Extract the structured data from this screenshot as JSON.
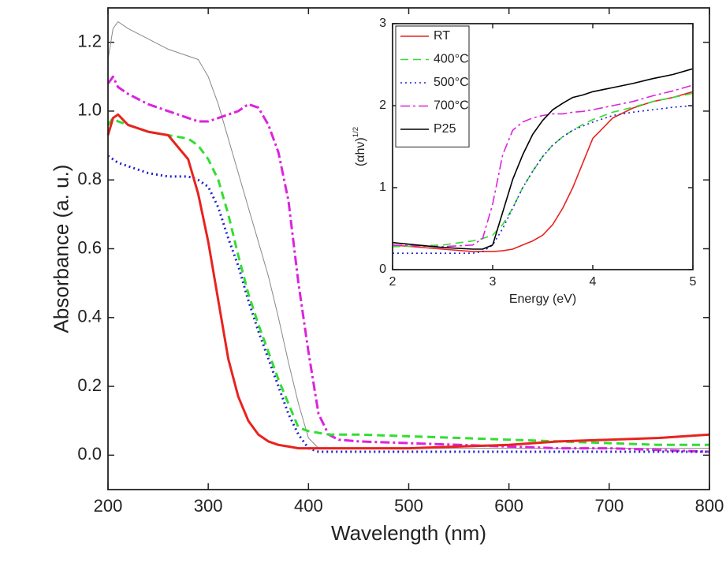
{
  "chart_data": [
    {
      "type": "line",
      "xlabel": "Wavelength (nm)",
      "ylabel": "Absorbance (a. u.)",
      "xlim": [
        200,
        800
      ],
      "xticks": [
        200,
        300,
        400,
        500,
        600,
        700,
        800
      ],
      "ylim": [
        -0.1,
        1.3
      ],
      "yticks": [
        {
          "value": 0,
          "label": "0.0"
        },
        0.2,
        0.4,
        0.6,
        0.8,
        {
          "value": 1,
          "label": "1.0"
        },
        1.2
      ],
      "x": [
        200,
        205,
        210,
        220,
        240,
        260,
        280,
        290,
        300,
        310,
        320,
        330,
        340,
        350,
        360,
        370,
        380,
        390,
        400,
        410,
        420,
        430,
        450,
        500,
        550,
        600,
        650,
        700,
        750,
        800
      ],
      "series": [
        {
          "color": "#888888",
          "style": "hairline",
          "values": [
            1.15,
            1.24,
            1.26,
            1.24,
            1.21,
            1.18,
            1.16,
            1.15,
            1.1,
            1.02,
            0.92,
            0.82,
            0.72,
            0.62,
            0.52,
            0.4,
            0.27,
            0.15,
            0.05,
            0.02,
            0.02,
            0.02,
            0.02,
            0.02,
            0.02,
            0.02,
            0.02,
            0.02,
            0.02,
            0.02
          ]
        },
        {
          "color": "#dd22dd",
          "style": "dashdot",
          "values": [
            1.08,
            1.1,
            1.07,
            1.05,
            1.02,
            1.0,
            0.98,
            0.97,
            0.97,
            0.98,
            0.99,
            1.0,
            1.02,
            1.01,
            0.96,
            0.88,
            0.74,
            0.5,
            0.3,
            0.12,
            0.06,
            0.045,
            0.04,
            0.035,
            0.03,
            0.025,
            0.02,
            0.02,
            0.015,
            0.01
          ]
        },
        {
          "color": "#2222cc",
          "style": "dotted",
          "values": [
            0.87,
            0.86,
            0.85,
            0.84,
            0.82,
            0.81,
            0.81,
            0.8,
            0.78,
            0.72,
            0.63,
            0.55,
            0.45,
            0.36,
            0.28,
            0.2,
            0.12,
            0.06,
            0.02,
            0.01,
            0.01,
            0.01,
            0.01,
            0.01,
            0.01,
            0.01,
            0.01,
            0.01,
            0.01,
            0.01
          ]
        },
        {
          "color": "#33dd33",
          "style": "dashed",
          "values": [
            0.96,
            0.98,
            0.97,
            0.96,
            0.94,
            0.93,
            0.92,
            0.9,
            0.86,
            0.8,
            0.7,
            0.58,
            0.47,
            0.38,
            0.3,
            0.22,
            0.15,
            0.08,
            0.07,
            0.065,
            0.06,
            0.06,
            0.06,
            0.055,
            0.05,
            0.045,
            0.04,
            0.035,
            0.03,
            0.03
          ]
        },
        {
          "color": "#e8231f",
          "style": "solid",
          "values": [
            0.93,
            0.98,
            0.99,
            0.96,
            0.94,
            0.93,
            0.86,
            0.76,
            0.62,
            0.45,
            0.28,
            0.17,
            0.1,
            0.06,
            0.04,
            0.03,
            0.025,
            0.02,
            0.02,
            0.02,
            0.02,
            0.02,
            0.02,
            0.02,
            0.025,
            0.03,
            0.04,
            0.045,
            0.05,
            0.06
          ]
        }
      ]
    },
    {
      "type": "line",
      "xlabel": "Energy (eV)",
      "ylabel": "(αhν)",
      "ylabel_superscript": "1/2",
      "xlim": [
        2,
        5
      ],
      "xticks": [
        2,
        3,
        4,
        5
      ],
      "ylim": [
        0,
        3
      ],
      "yticks": [
        0,
        1,
        2,
        3
      ],
      "legend": "upper left",
      "x": [
        2,
        2.5,
        2.8,
        2.9,
        3,
        3.1,
        3.2,
        3.3,
        3.4,
        3.5,
        3.6,
        3.7,
        3.8,
        3.9,
        4,
        4.2,
        4.4,
        4.6,
        4.8,
        5
      ],
      "series": [
        {
          "name": "RT",
          "color": "#e8231f",
          "style": "solid",
          "values": [
            0.3,
            0.25,
            0.22,
            0.22,
            0.22,
            0.23,
            0.25,
            0.3,
            0.35,
            0.42,
            0.55,
            0.75,
            1.0,
            1.3,
            1.6,
            1.85,
            1.97,
            2.05,
            2.1,
            2.17
          ]
        },
        {
          "name": "400°C",
          "color": "#33dd33",
          "style": "dashed",
          "values": [
            0.28,
            0.3,
            0.35,
            0.38,
            0.42,
            0.55,
            0.75,
            1.0,
            1.2,
            1.38,
            1.52,
            1.62,
            1.7,
            1.77,
            1.83,
            1.92,
            1.98,
            2.05,
            2.1,
            2.15
          ]
        },
        {
          "name": "500°C",
          "color": "#2222cc",
          "style": "dotted",
          "values": [
            0.2,
            0.2,
            0.2,
            0.22,
            0.3,
            0.5,
            0.75,
            1.0,
            1.2,
            1.38,
            1.52,
            1.62,
            1.7,
            1.75,
            1.8,
            1.88,
            1.92,
            1.95,
            1.98,
            2.0
          ]
        },
        {
          "name": "700°C",
          "color": "#dd22dd",
          "style": "dashdot",
          "values": [
            0.3,
            0.28,
            0.3,
            0.38,
            0.8,
            1.4,
            1.7,
            1.8,
            1.85,
            1.88,
            1.9,
            1.9,
            1.92,
            1.93,
            1.95,
            2.0,
            2.05,
            2.12,
            2.18,
            2.25
          ]
        },
        {
          "name": "P25",
          "color": "#000000",
          "style": "solid",
          "values": [
            0.33,
            0.27,
            0.25,
            0.25,
            0.3,
            0.7,
            1.1,
            1.4,
            1.65,
            1.82,
            1.95,
            2.03,
            2.1,
            2.13,
            2.17,
            2.22,
            2.27,
            2.33,
            2.38,
            2.45
          ]
        }
      ]
    }
  ]
}
